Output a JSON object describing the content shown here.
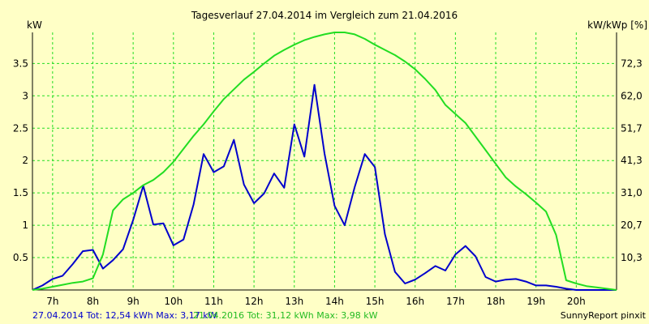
{
  "chart_data": {
    "type": "line",
    "title": "Tagesverlauf 27.04.2014 im Vergleich zum 21.04.2016",
    "ylabel_left": "kW",
    "ylabel_right": "kW/kWp [%]",
    "xlim": [
      6.5,
      21.0
    ],
    "ylim": [
      0,
      3.98
    ],
    "x_ticks": [
      7,
      8,
      9,
      10,
      11,
      12,
      13,
      14,
      15,
      16,
      17,
      18,
      19,
      20
    ],
    "x_tick_labels": [
      "7h",
      "8h",
      "9h",
      "10h",
      "11h",
      "12h",
      "13h",
      "14h",
      "15h",
      "16h",
      "17h",
      "18h",
      "19h",
      "20h"
    ],
    "y_left_ticks": [
      0.5,
      1,
      1.5,
      2,
      2.5,
      3,
      3.5
    ],
    "y_left_tick_labels": [
      "0.5",
      "1",
      "1.5",
      "2",
      "2.5",
      "3",
      "3.5"
    ],
    "y_right_ticks": [
      0.5,
      1,
      1.5,
      2,
      2.5,
      3,
      3.5
    ],
    "y_right_tick_labels": [
      "10,3",
      "20,7",
      "31,0",
      "41,3",
      "51,7",
      "62,0",
      "72,3"
    ],
    "grid": true,
    "series": [
      {
        "name": "27.04.2014",
        "color": "#0000cc",
        "x": [
          6.5,
          6.75,
          7.0,
          7.25,
          7.5,
          7.75,
          8.0,
          8.25,
          8.5,
          8.75,
          9.0,
          9.25,
          9.5,
          9.75,
          10.0,
          10.25,
          10.5,
          10.75,
          11.0,
          11.25,
          11.5,
          11.75,
          12.0,
          12.25,
          12.5,
          12.75,
          13.0,
          13.25,
          13.5,
          13.75,
          14.0,
          14.25,
          14.5,
          14.75,
          15.0,
          15.25,
          15.5,
          15.75,
          16.0,
          16.25,
          16.5,
          16.75,
          17.0,
          17.25,
          17.5,
          17.75,
          18.0,
          18.25,
          18.5,
          18.75,
          19.0,
          19.25,
          19.5,
          19.75,
          20.0,
          20.25,
          20.5,
          20.75,
          21.0
        ],
        "values": [
          0.0,
          0.07,
          0.17,
          0.22,
          0.4,
          0.6,
          0.62,
          0.33,
          0.46,
          0.63,
          1.08,
          1.61,
          1.01,
          1.03,
          0.69,
          0.78,
          1.32,
          2.1,
          1.82,
          1.91,
          2.32,
          1.63,
          1.34,
          1.49,
          1.8,
          1.58,
          2.56,
          2.06,
          3.17,
          2.11,
          1.3,
          1.0,
          1.59,
          2.1,
          1.9,
          0.86,
          0.28,
          0.1,
          0.16,
          0.26,
          0.37,
          0.3,
          0.55,
          0.68,
          0.52,
          0.2,
          0.13,
          0.16,
          0.17,
          0.13,
          0.07,
          0.07,
          0.05,
          0.02,
          0.0,
          0.0,
          0.0,
          0.0,
          0.0
        ]
      },
      {
        "name": "21.04.2016",
        "color": "#22dd22",
        "x": [
          6.5,
          6.75,
          7.0,
          7.25,
          7.5,
          7.75,
          8.0,
          8.25,
          8.5,
          8.75,
          9.0,
          9.25,
          9.5,
          9.75,
          10.0,
          10.25,
          10.5,
          10.75,
          11.0,
          11.25,
          11.5,
          11.75,
          12.0,
          12.25,
          12.5,
          12.75,
          13.0,
          13.25,
          13.5,
          13.75,
          14.0,
          14.25,
          14.5,
          14.75,
          15.0,
          15.25,
          15.5,
          15.75,
          16.0,
          16.25,
          16.5,
          16.75,
          17.0,
          17.25,
          17.5,
          17.75,
          18.0,
          18.25,
          18.5,
          18.75,
          19.0,
          19.25,
          19.5,
          19.75,
          20.0,
          20.25,
          20.5,
          20.75,
          21.0
        ],
        "values": [
          0.0,
          0.02,
          0.05,
          0.08,
          0.11,
          0.13,
          0.18,
          0.55,
          1.23,
          1.4,
          1.5,
          1.62,
          1.7,
          1.82,
          1.98,
          2.18,
          2.38,
          2.56,
          2.76,
          2.95,
          3.1,
          3.25,
          3.37,
          3.5,
          3.62,
          3.71,
          3.79,
          3.86,
          3.91,
          3.95,
          3.98,
          3.98,
          3.95,
          3.88,
          3.79,
          3.71,
          3.63,
          3.53,
          3.41,
          3.26,
          3.09,
          2.86,
          2.72,
          2.58,
          2.37,
          2.16,
          1.95,
          1.74,
          1.6,
          1.48,
          1.35,
          1.21,
          0.85,
          0.15,
          0.1,
          0.06,
          0.04,
          0.02,
          0.0
        ]
      }
    ]
  },
  "footer": {
    "series1_stats": "27.04.2014 Tot: 12,54 kWh Max: 3,17 kW",
    "series2_stats": "21.04.2016 Tot: 31,12 kWh Max: 3,98 kW",
    "credit": "SunnyReport pinxit"
  },
  "colors": {
    "background": "#ffffc6",
    "grid": "#22dd22",
    "axis": "#000000",
    "footer_series1": "#0000cc",
    "footer_series2": "#22bb22"
  }
}
